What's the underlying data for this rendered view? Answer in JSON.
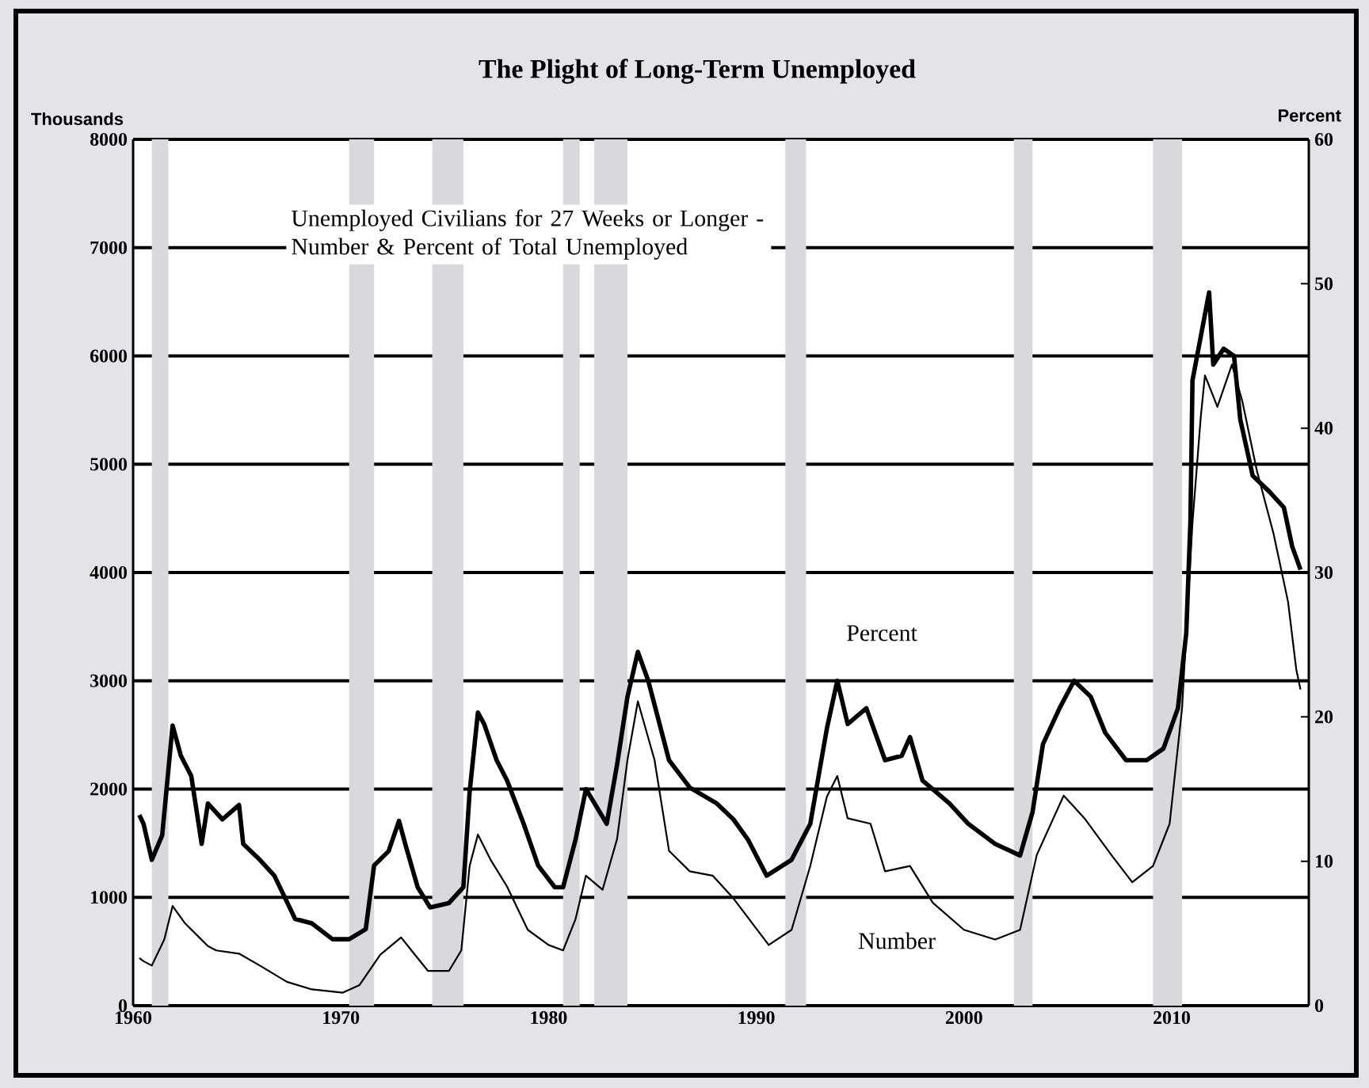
{
  "chart_data": {
    "type": "line",
    "title": "The Plight of Long-Term Unemployed",
    "subtitle": "Unemployed Civilians for 27 Weeks or Longer - Number & Percent of Total Unemployed",
    "ylabel": "Thousands",
    "y2label": "Percent",
    "xlim": [
      1960,
      2016.6
    ],
    "xticks": [
      1960,
      1970,
      1980,
      1990,
      2000,
      2010
    ],
    "ylim": [
      0,
      8000
    ],
    "yticks": [
      0,
      1000,
      2000,
      3000,
      4000,
      5000,
      6000,
      7000,
      8000
    ],
    "y2lim": [
      0,
      60
    ],
    "y2ticks": [
      0,
      10,
      20,
      30,
      40,
      50,
      60
    ],
    "grid": "y",
    "marker": "none",
    "series": [
      {
        "name": "Number",
        "color": "#000000",
        "x": [
          1960.3,
          1960.5,
          1960.9,
          1961.5,
          1961.9,
          1962.5,
          1963.6,
          1964.0,
          1965.1,
          1966.1,
          1967.4,
          1968.6,
          1970.1,
          1970.9,
          1971.9,
          1972.9,
          1973.4,
          1974.2,
          1975.2,
          1975.8,
          1976.2,
          1976.6,
          1977.2,
          1978.0,
          1979.0,
          1980.0,
          1980.7,
          1981.3,
          1981.8,
          1982.6,
          1983.3,
          1983.8,
          1984.3,
          1985.1,
          1985.8,
          1986.8,
          1987.9,
          1988.9,
          1990.6,
          1991.7,
          1992.6,
          1993.4,
          1993.9,
          1994.4,
          1995.5,
          1996.2,
          1997.4,
          1998.5,
          2000.0,
          2001.5,
          2002.7,
          2003.5,
          2004.8,
          2005.8,
          2007.1,
          2008.1,
          2009.1,
          2009.9,
          2010.5,
          2010.6,
          2011.0,
          2011.4,
          2011.6,
          2012.2,
          2012.9,
          2013.4,
          2014.1,
          2014.9,
          2015.6,
          2016.0,
          2016.2
        ],
        "values": [
          440,
          410,
          370,
          610,
          920,
          760,
          550,
          510,
          480,
          370,
          220,
          150,
          120,
          190,
          470,
          630,
          510,
          320,
          320,
          510,
          1290,
          1580,
          1350,
          1100,
          700,
          560,
          510,
          800,
          1200,
          1070,
          1540,
          2270,
          2810,
          2270,
          1430,
          1240,
          1200,
          990,
          560,
          700,
          1290,
          1930,
          2120,
          1730,
          1680,
          1240,
          1290,
          950,
          700,
          610,
          700,
          1390,
          1940,
          1730,
          1390,
          1140,
          1290,
          1680,
          2750,
          3100,
          4460,
          5440,
          5820,
          5530,
          5920,
          5580,
          4940,
          4360,
          3730,
          3100,
          2920
        ]
      },
      {
        "name": "Percent",
        "color": "#000000",
        "axis": "y2",
        "x": [
          1960.3,
          1960.5,
          1960.9,
          1961.4,
          1961.9,
          1962.3,
          1962.8,
          1963.3,
          1963.6,
          1964.3,
          1965.1,
          1965.3,
          1966.1,
          1966.8,
          1967.8,
          1968.6,
          1969.6,
          1970.4,
          1971.2,
          1971.6,
          1972.3,
          1972.8,
          1973.1,
          1973.7,
          1974.3,
          1975.2,
          1975.9,
          1976.2,
          1976.6,
          1976.9,
          1977.5,
          1978.0,
          1978.8,
          1979.5,
          1980.3,
          1980.7,
          1981.3,
          1981.8,
          1982.8,
          1983.3,
          1983.8,
          1984.3,
          1984.8,
          1985.8,
          1986.8,
          1988.1,
          1988.9,
          1989.6,
          1990.5,
          1991.7,
          1992.6,
          1993.4,
          1993.9,
          1994.4,
          1995.3,
          1996.2,
          1997.0,
          1997.4,
          1998.0,
          1999.3,
          2000.2,
          2001.5,
          2002.7,
          2003.3,
          2003.8,
          2004.6,
          2005.3,
          2006.1,
          2006.8,
          2007.8,
          2008.8,
          2009.6,
          2010.3,
          2010.7,
          2010.9,
          2011.0,
          2011.8,
          2012.0,
          2012.5,
          2013.0,
          2013.3,
          2013.9,
          2014.7,
          2015.4,
          2015.8,
          2016.2
        ],
        "values": [
          13.2,
          12.6,
          10.1,
          11.8,
          19.4,
          17.3,
          15.9,
          11.2,
          14.0,
          12.9,
          13.9,
          11.2,
          10.1,
          9.0,
          6.0,
          5.7,
          4.6,
          4.6,
          5.3,
          9.7,
          10.7,
          12.8,
          11.2,
          8.2,
          6.8,
          7.1,
          8.2,
          14.8,
          20.3,
          19.5,
          17.0,
          15.6,
          12.6,
          9.7,
          8.2,
          8.2,
          11.5,
          15.0,
          12.6,
          16.7,
          21.4,
          24.5,
          22.5,
          17.0,
          15.1,
          14.0,
          12.9,
          11.5,
          9.0,
          10.1,
          12.6,
          19.2,
          22.5,
          19.5,
          20.6,
          17.0,
          17.3,
          18.6,
          15.6,
          14.0,
          12.6,
          11.2,
          10.4,
          13.4,
          18.1,
          20.6,
          22.5,
          21.4,
          18.9,
          17.0,
          17.0,
          17.8,
          20.6,
          25.8,
          33.5,
          43.3,
          49.4,
          44.4,
          45.5,
          45.0,
          40.6,
          36.7,
          35.6,
          34.5,
          31.8,
          30.2
        ]
      }
    ],
    "bands": [
      {
        "axis": "x",
        "from": 1960.9,
        "to": 1961.7,
        "color": "#d9d9dc"
      },
      {
        "axis": "x",
        "from": 1970.4,
        "to": 1971.6,
        "color": "#d9d9dc"
      },
      {
        "axis": "x",
        "from": 1974.4,
        "to": 1975.9,
        "color": "#d9d9dc"
      },
      {
        "axis": "x",
        "from": 1980.7,
        "to": 1981.5,
        "color": "#d9d9dc"
      },
      {
        "axis": "x",
        "from": 1982.2,
        "to": 1983.8,
        "color": "#d9d9dc"
      },
      {
        "axis": "x",
        "from": 1991.4,
        "to": 1992.4,
        "color": "#d9d9dc"
      },
      {
        "axis": "x",
        "from": 2002.4,
        "to": 2003.3,
        "color": "#d9d9dc"
      },
      {
        "axis": "x",
        "from": 2009.1,
        "to": 2010.5,
        "color": "#d9d9dc"
      }
    ]
  }
}
